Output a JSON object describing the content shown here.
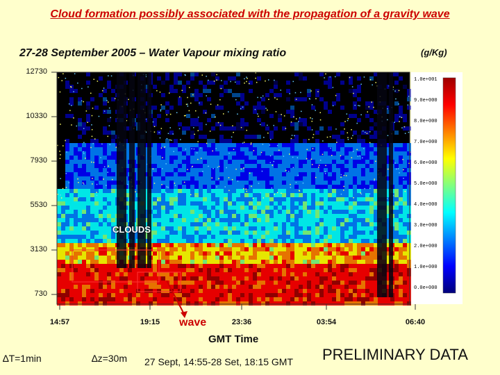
{
  "heading": "Cloud formation possibly associated with the propagation of a gravity wave",
  "chart_data": {
    "type": "heatmap",
    "title": "27-28 September 2005 – Water Vapour mixing ratio",
    "unit": "(g/Kg)",
    "xlabel": "GMT Time",
    "ylabel": "",
    "x_ticks": [
      "14:57",
      "19:15",
      "23:36",
      "03:54",
      "06:40"
    ],
    "y_ticks": [
      "12730",
      "10330",
      "7930",
      "5530",
      "3130",
      "730"
    ],
    "colorbar": {
      "ticks": [
        "1.0e+001",
        "9.0e+000",
        "8.0e+000",
        "7.0e+000",
        "6.0e+000",
        "5.0e+000",
        "4.0e+000",
        "3.0e+000",
        "2.0e+000",
        "1.0e+000",
        "0.0e+000"
      ],
      "colors": [
        "#9e0000",
        "#ff0000",
        "#ff8000",
        "#ffff00",
        "#80ff80",
        "#00ffff",
        "#0080ff",
        "#0000ff",
        "#00007a"
      ]
    },
    "annotations": {
      "clouds": "CLOUDS",
      "wave": "wave"
    }
  },
  "footer": {
    "delta_t": "∆T=1min",
    "delta_z": "∆z=30m",
    "span": "27 Sept, 14:55-28 Set, 18:15 GMT",
    "status": "PRELIMINARY DATA"
  }
}
